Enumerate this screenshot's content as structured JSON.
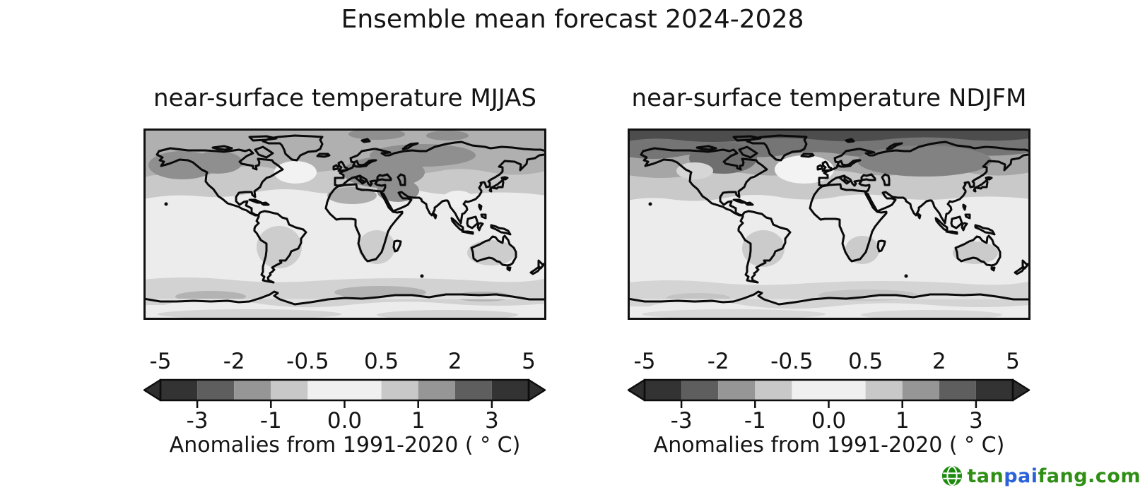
{
  "figure": {
    "title": "Ensemble mean forecast 2024-2028",
    "background": "#ffffff",
    "panels": [
      {
        "id": "mjjas",
        "title": "near-surface temperature MJJAS",
        "xlabel": "Anomalies from 1991-2020 ( ° C)"
      },
      {
        "id": "ndjfm",
        "title": "near-surface temperature NDJFM",
        "xlabel": "Anomalies from 1991-2020 ( ° C)"
      }
    ],
    "colorbar": {
      "levels": [
        -5,
        -3,
        -2,
        -1,
        -0.5,
        0.5,
        1,
        2,
        3,
        5
      ],
      "ticks_top": [
        "-5",
        "-2",
        "-0.5",
        "0.5",
        "2",
        "5"
      ],
      "ticks_bottom": [
        "-3",
        "-1",
        "0.0",
        "1",
        "3"
      ],
      "segment_colors": [
        "#333333",
        "#5e5e5e",
        "#969696",
        "#c8c8c8",
        "#f0f0f0",
        "#c8c8c8",
        "#969696",
        "#5e5e5e",
        "#333333"
      ],
      "arrow_color": "#2e2e2e",
      "frame_color": "#0d0d0d",
      "extend": "both"
    }
  },
  "watermark": {
    "icon": "globe-icon",
    "icon_color": "#1e8a10",
    "parts": [
      {
        "text": "tan",
        "color": "#2f8f15"
      },
      {
        "text": "pai",
        "color": "#2b62d9"
      },
      {
        "text": "fang.com",
        "color": "#2f8f15"
      }
    ]
  },
  "chart_data": [
    {
      "type": "heatmap",
      "title": "near-surface temperature MJJAS",
      "season": "MJJAS (May-September)",
      "forecast_period": "2024-2028",
      "baseline": "1991-2020",
      "units": "°C",
      "projection": "global equirectangular filled-contour map with black coastlines",
      "contour_levels": [
        -5,
        -3,
        -2,
        -1,
        -0.5,
        0.5,
        1,
        2,
        3,
        5
      ],
      "colormap": "grayscale diverging, arrows extending both ends",
      "legend_label": "Anomalies from 1991-2020 ( ° C)",
      "region_values": [
        {
          "region": "tropical and subtropical oceans",
          "anomaly_degC": "0 to 0.5"
        },
        {
          "region": "northern mid-latitude oceans",
          "anomaly_degC": "0.5 to 1"
        },
        {
          "region": "Arctic ocean and high northern latitudes",
          "anomaly_degC": "1 to 2"
        },
        {
          "region": "Alaska / northwest Canada",
          "anomaly_degC": "1 to 2"
        },
        {
          "region": "eastern Europe / central Asia / Middle East",
          "anomaly_degC": "1 to 2"
        },
        {
          "region": "North Atlantic south of Greenland (warming hole)",
          "anomaly_degC": "-0.5 to 0.5"
        },
        {
          "region": "South America, southern Africa, Australia interiors",
          "anomaly_degC": "0.5 to 1"
        },
        {
          "region": "Southern Ocean ring near Antarctica",
          "anomaly_degC": "0.5 to 1"
        }
      ]
    },
    {
      "type": "heatmap",
      "title": "near-surface temperature NDJFM",
      "season": "NDJFM (November-March)",
      "forecast_period": "2024-2028",
      "baseline": "1991-2020",
      "units": "°C",
      "projection": "global equirectangular filled-contour map with black coastlines",
      "contour_levels": [
        -5,
        -3,
        -2,
        -1,
        -0.5,
        0.5,
        1,
        2,
        3,
        5
      ],
      "colormap": "grayscale diverging, arrows extending both ends",
      "legend_label": "Anomalies from 1991-2020 ( ° C)",
      "region_values": [
        {
          "region": "central Arctic (north of ~80N)",
          "anomaly_degC": "3 to 5"
        },
        {
          "region": "Arctic coasts / subarctic (~65-80N)",
          "anomaly_degC": "2 to 3"
        },
        {
          "region": "northeast Canada and Siberia land",
          "anomaly_degC": "2 to 3"
        },
        {
          "region": "northern mid-latitudes (~40-60N)",
          "anomaly_degC": "0.5 to 2"
        },
        {
          "region": "North Atlantic south of Greenland (warming hole)",
          "anomaly_degC": "-0.5 to 0.5"
        },
        {
          "region": "tropical and subtropical oceans",
          "anomaly_degC": "0 to 0.5"
        },
        {
          "region": "South America, southern Africa, Australia interiors",
          "anomaly_degC": "0.5 to 1"
        },
        {
          "region": "Southern Ocean ring near Antarctica",
          "anomaly_degC": "0.5 to 1"
        }
      ]
    }
  ]
}
